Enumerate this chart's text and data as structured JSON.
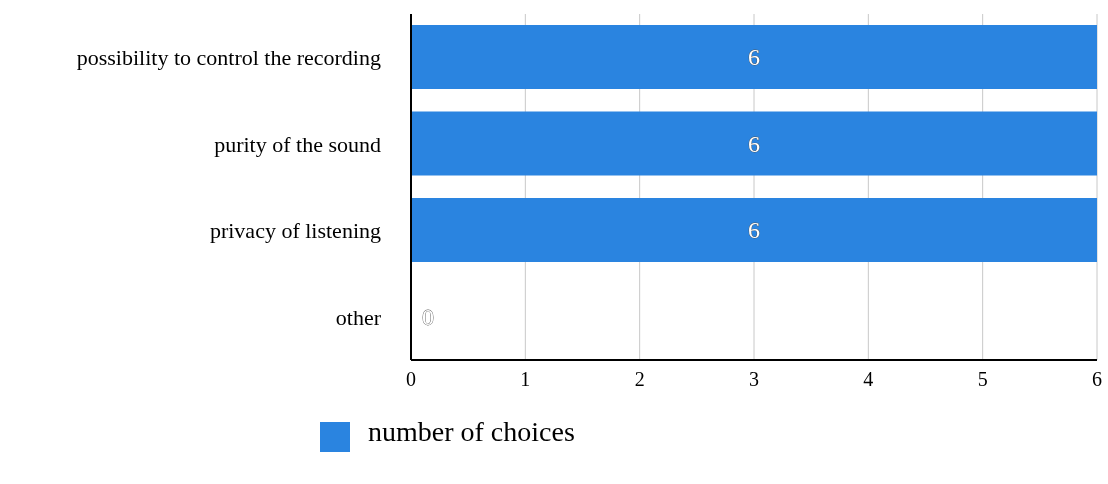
{
  "chart_data": {
    "type": "bar",
    "orientation": "horizontal",
    "categories": [
      "possibility to control the recording",
      "purity of the sound",
      "privacy of listening",
      "other"
    ],
    "series": [
      {
        "name": "number of choices",
        "color": "#2a84e0",
        "values": [
          6,
          6,
          6,
          0
        ]
      }
    ],
    "xlim": [
      0,
      6
    ],
    "xticks": [
      0,
      1,
      2,
      3,
      4,
      5,
      6
    ],
    "grid": "x",
    "legend": "bottom",
    "data_labels": true
  }
}
